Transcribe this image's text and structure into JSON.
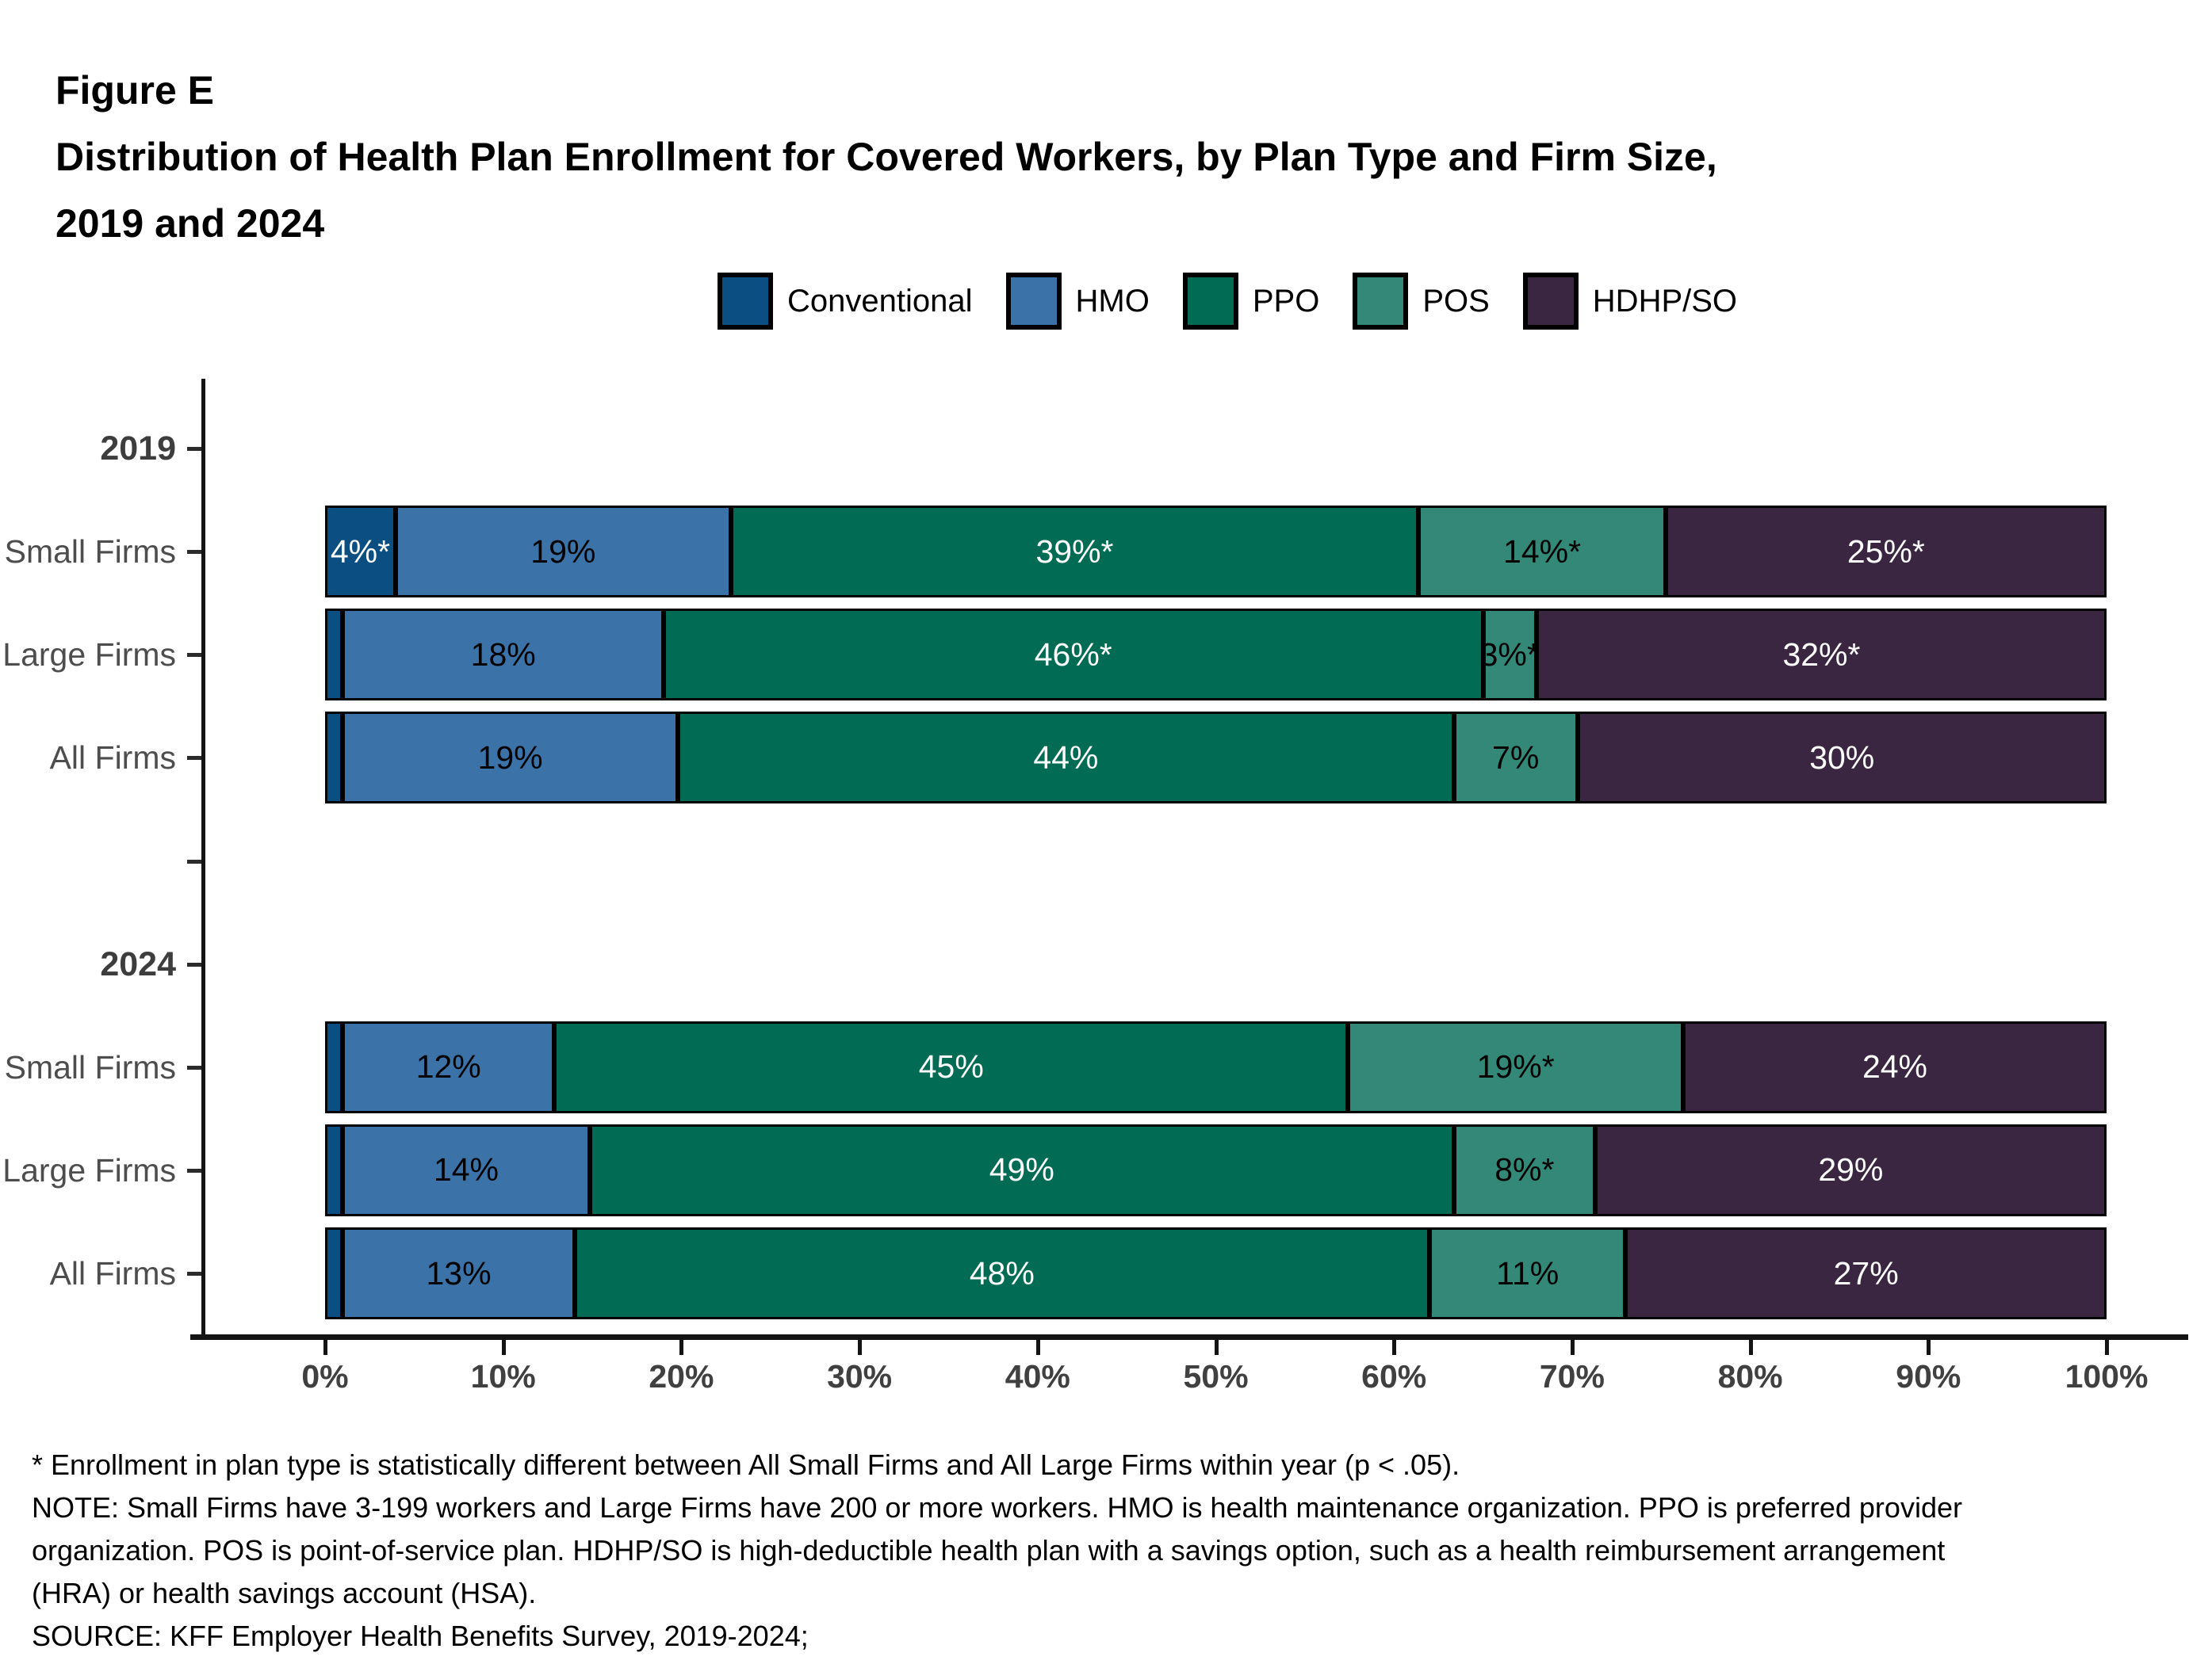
{
  "figure": {
    "label": "Figure E",
    "title_line1": "Distribution of Health Plan Enrollment for Covered Workers, by Plan Type and Firm Size,",
    "title_line2": "2019 and 2024"
  },
  "chart_data": {
    "type": "bar",
    "stacked": true,
    "orientation": "horizontal",
    "unit": "percent",
    "title": "Distribution of Health Plan Enrollment for Covered Workers, by Plan Type and Firm Size, 2019 and 2024",
    "xlabel": "",
    "ylabel": "",
    "xlim": [
      0,
      100
    ],
    "x_ticks": [
      "0%",
      "10%",
      "20%",
      "30%",
      "40%",
      "50%",
      "60%",
      "70%",
      "80%",
      "90%",
      "100%"
    ],
    "grid": false,
    "legend_position": "top",
    "plans": [
      {
        "name": "Conventional",
        "color": "#0B4E81",
        "label_color": "#FFFFFF"
      },
      {
        "name": "HMO",
        "color": "#3B73A9",
        "label_color": "#000000"
      },
      {
        "name": "PPO",
        "color": "#026B54",
        "label_color": "#FFFFFF"
      },
      {
        "name": "POS",
        "color": "#348878",
        "label_color": "#000000"
      },
      {
        "name": "HDHP/SO",
        "color": "#3A2640",
        "label_color": "#FFFFFF"
      }
    ],
    "groups": [
      {
        "year": "2019",
        "rows": [
          {
            "category": "Small Firms",
            "values": [
              4,
              19,
              39,
              14,
              25
            ],
            "labels": [
              "4%*",
              "19%",
              "39%*",
              "14%*",
              "25%*"
            ]
          },
          {
            "category": "Large Firms",
            "values": [
              1,
              18,
              46,
              3,
              32
            ],
            "labels": [
              "",
              "18%",
              "46%*",
              "3%*",
              "32%*"
            ]
          },
          {
            "category": "All Firms",
            "values": [
              1,
              19,
              44,
              7,
              30
            ],
            "labels": [
              "",
              "19%",
              "44%",
              "7%",
              "30%"
            ]
          }
        ]
      },
      {
        "year": "2024",
        "rows": [
          {
            "category": "Small Firms",
            "values": [
              1,
              12,
              45,
              19,
              24
            ],
            "labels": [
              "",
              "12%",
              "45%",
              "19%*",
              "24%"
            ]
          },
          {
            "category": "Large Firms",
            "values": [
              1,
              14,
              49,
              8,
              29
            ],
            "labels": [
              "",
              "14%",
              "49%",
              "8%*",
              "29%"
            ]
          },
          {
            "category": "All Firms",
            "values": [
              1,
              13,
              48,
              11,
              27
            ],
            "labels": [
              "",
              "13%",
              "48%",
              "11%",
              "27%"
            ]
          }
        ]
      }
    ]
  },
  "footnotes": [
    "* Enrollment in plan type is statistically different between All Small Firms and All Large Firms within year (p < .05).",
    "NOTE: Small Firms have 3-199 workers and Large Firms have 200 or more workers. HMO is health maintenance organization. PPO is preferred provider",
    "organization. POS is point-of-service plan. HDHP/SO is high-deductible health plan with a savings option, such as a health reimbursement arrangement",
    "(HRA) or health savings account (HSA).",
    "SOURCE: KFF Employer Health Benefits Survey, 2019-2024;"
  ]
}
